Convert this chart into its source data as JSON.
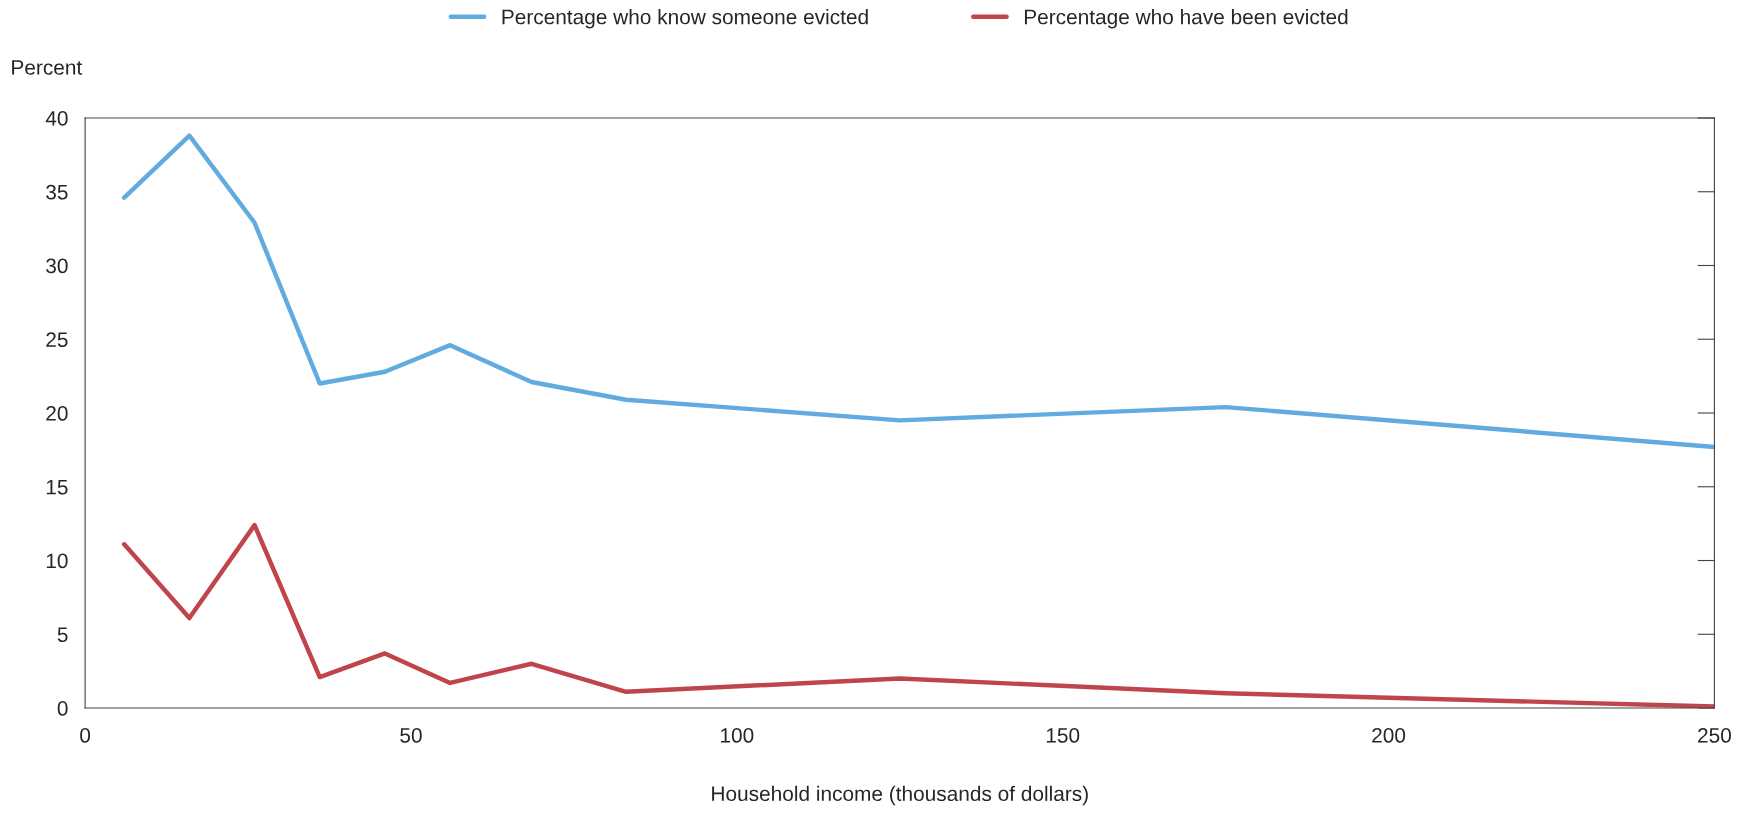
{
  "chart_data": {
    "type": "line",
    "ylabel": "Percent",
    "xlabel": "Household income (thousands of dollars)",
    "x": [
      6,
      16,
      26,
      36,
      46,
      56,
      68.5,
      83,
      125,
      175,
      250
    ],
    "series": [
      {
        "name": "Percentage who know someone evicted",
        "color": "#62abe0",
        "values": [
          34.6,
          38.8,
          32.9,
          22.0,
          22.8,
          24.6,
          22.1,
          20.9,
          19.5,
          20.4,
          17.7
        ]
      },
      {
        "name": "Percentage who have been evicted",
        "color": "#c0454a",
        "values": [
          11.1,
          6.1,
          12.4,
          2.1,
          3.7,
          1.7,
          3.0,
          1.1,
          2.0,
          1.0,
          0.1
        ]
      }
    ],
    "xlim": [
      0,
      250
    ],
    "xticks": [
      0,
      50,
      100,
      150,
      200,
      250
    ],
    "ylim": [
      0,
      40
    ],
    "yticks": [
      0,
      5,
      10,
      15,
      20,
      25,
      30,
      35,
      40
    ],
    "grid": false,
    "legend": "top",
    "marker": "none",
    "line_style": "solid"
  }
}
